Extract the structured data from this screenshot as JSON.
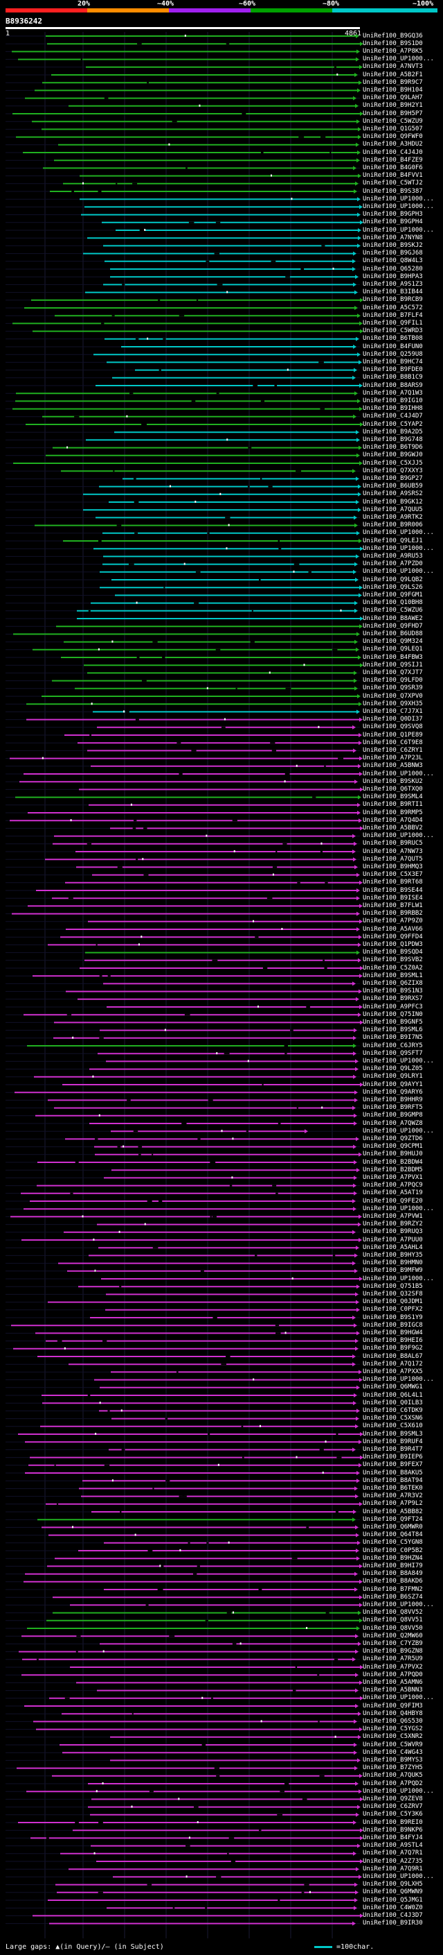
{
  "legend": {
    "ticks": [
      "20%",
      "~40%",
      "~60%",
      "~80%",
      "~100%"
    ],
    "colors": [
      "#ff2020",
      "#ff8c00",
      "#a020f0",
      "#00a000",
      "#00c8c8"
    ]
  },
  "query": {
    "id": "B8936242",
    "start": "1",
    "end": "4861"
  },
  "colors": {
    "cyan": "#00c8c8",
    "green": "#20b020",
    "magenta": "#d030d0",
    "gap": "#000"
  },
  "hits": [
    {
      "label": "UniRef100_B9GQ36",
      "c": "g"
    },
    {
      "label": "UniRef100_B9S1D0",
      "c": "g"
    },
    {
      "label": "UniRef100_A7P8K5",
      "c": "g"
    },
    {
      "label": "UniRef100_UP1000...",
      "c": "g"
    },
    {
      "label": "UniRef100_A7NVT3",
      "c": "g"
    },
    {
      "label": "UniRef100_A5B2F1",
      "c": "g"
    },
    {
      "label": "UniRef100_B9R9C7",
      "c": "g"
    },
    {
      "label": "UniRef100_B9H104",
      "c": "g"
    },
    {
      "label": "UniRef100_Q9LAH7",
      "c": "g"
    },
    {
      "label": "UniRef100_B9H2Y1",
      "c": "g"
    },
    {
      "label": "UniRef100_B9H5P7",
      "c": "g"
    },
    {
      "label": "UniRef100_C5WZU9",
      "c": "g"
    },
    {
      "label": "UniRef100_Q1G507",
      "c": "g"
    },
    {
      "label": "UniRef100_Q9FWF0",
      "c": "g"
    },
    {
      "label": "UniRef100_A3HDU2",
      "c": "g"
    },
    {
      "label": "UniRef100_C4J4J0",
      "c": "g"
    },
    {
      "label": "UniRef100_B4FZE9",
      "c": "g"
    },
    {
      "label": "UniRef100_B4G0F6",
      "c": "g"
    },
    {
      "label": "UniRef100_B4FVV1",
      "c": "g"
    },
    {
      "label": "UniRef100_C5WTJ2",
      "c": "g"
    },
    {
      "label": "UniRef100_B9S387",
      "c": "g"
    },
    {
      "label": "UniRef100_UP1000...",
      "c": "c"
    },
    {
      "label": "UniRef100_UP1000...",
      "c": "c"
    },
    {
      "label": "UniRef100_B9GPH3",
      "c": "c"
    },
    {
      "label": "UniRef100_B9GPH4",
      "c": "c"
    },
    {
      "label": "UniRef100_UP1000...",
      "c": "c"
    },
    {
      "label": "UniRef100_A7NYN8",
      "c": "c"
    },
    {
      "label": "UniRef100_B9SKJ2",
      "c": "c"
    },
    {
      "label": "UniRef100_B9GJ68",
      "c": "c"
    },
    {
      "label": "UniRef100_Q8W4L3",
      "c": "c"
    },
    {
      "label": "UniRef100_Q65280",
      "c": "c"
    },
    {
      "label": "UniRef100_B9HPA3",
      "c": "c"
    },
    {
      "label": "UniRef100_A9S1Z3",
      "c": "c"
    },
    {
      "label": "UniRef100_B3IB44",
      "c": "c"
    },
    {
      "label": "UniRef100_B9RCB9",
      "c": "g"
    },
    {
      "label": "UniRef100_A5C572",
      "c": "g"
    },
    {
      "label": "UniRef100_B7FLF4",
      "c": "g"
    },
    {
      "label": "UniRef100_Q9FIL1",
      "c": "g"
    },
    {
      "label": "UniRef100_C5WRD3",
      "c": "g"
    },
    {
      "label": "UniRef100_B6TB08",
      "c": "c"
    },
    {
      "label": "UniRef100_B4FUN0",
      "c": "c"
    },
    {
      "label": "UniRef100_Q259U8",
      "c": "c"
    },
    {
      "label": "UniRef100_B9HC74",
      "c": "c"
    },
    {
      "label": "UniRef100_B9FDE0",
      "c": "c"
    },
    {
      "label": "UniRef100_B8B1C9",
      "c": "c"
    },
    {
      "label": "UniRef100_B8ARS9",
      "c": "c"
    },
    {
      "label": "UniRef100_A7Q1W3",
      "c": "g"
    },
    {
      "label": "UniRef100_B9IG10",
      "c": "g"
    },
    {
      "label": "UniRef100_B9IHH8",
      "c": "g"
    },
    {
      "label": "UniRef100_C4J4D7",
      "c": "g"
    },
    {
      "label": "UniRef100_C5YAP2",
      "c": "g"
    },
    {
      "label": "UniRef100_B9A2D5",
      "c": "c"
    },
    {
      "label": "UniRef100_B9G748",
      "c": "c"
    },
    {
      "label": "UniRef100_B6T9D6",
      "c": "g"
    },
    {
      "label": "UniRef100_B9GWJ0",
      "c": "g"
    },
    {
      "label": "UniRef100_C5XJJ5",
      "c": "g"
    },
    {
      "label": "UniRef100_Q7XXY3",
      "c": "g"
    },
    {
      "label": "UniRef100_B9GP27",
      "c": "c"
    },
    {
      "label": "UniRef100_B6UB59",
      "c": "c"
    },
    {
      "label": "UniRef100_A9SRS2",
      "c": "c"
    },
    {
      "label": "UniRef100_B9GK12",
      "c": "c"
    },
    {
      "label": "UniRef100_A7QUU5",
      "c": "c"
    },
    {
      "label": "UniRef100_A9RTK2",
      "c": "c"
    },
    {
      "label": "UniRef100_B9R006",
      "c": "g"
    },
    {
      "label": "UniRef100_UP1000...",
      "c": "c"
    },
    {
      "label": "UniRef100_Q9LEJ1",
      "c": "g"
    },
    {
      "label": "UniRef100_UP1000...",
      "c": "c"
    },
    {
      "label": "UniRef100_A9RU53",
      "c": "c"
    },
    {
      "label": "UniRef100_A7PZD0",
      "c": "c"
    },
    {
      "label": "UniRef100_UP1000...",
      "c": "c"
    },
    {
      "label": "UniRef100_Q9LQB2",
      "c": "c"
    },
    {
      "label": "UniRef100_Q9LS26",
      "c": "c"
    },
    {
      "label": "UniRef100_Q9FGM1",
      "c": "c"
    },
    {
      "label": "UniRef100_Q10BH8",
      "c": "c"
    },
    {
      "label": "UniRef100_C5WZU6",
      "c": "c"
    },
    {
      "label": "UniRef100_B8AWE2",
      "c": "c"
    },
    {
      "label": "UniRef100_Q9FHD7",
      "c": "g"
    },
    {
      "label": "UniRef100_B6UD88",
      "c": "g"
    },
    {
      "label": "UniRef100_Q9M324",
      "c": "g"
    },
    {
      "label": "UniRef100_Q9LEQ1",
      "c": "g"
    },
    {
      "label": "UniRef100_B4FBW3",
      "c": "g"
    },
    {
      "label": "UniRef100_Q9SIJ1",
      "c": "g"
    },
    {
      "label": "UniRef100_Q7XJT7",
      "c": "g"
    },
    {
      "label": "UniRef100_Q9LFD0",
      "c": "g"
    },
    {
      "label": "UniRef100_Q9SR39",
      "c": "g"
    },
    {
      "label": "UniRef100_Q7XPV0",
      "c": "g"
    },
    {
      "label": "UniRef100_Q9XH35",
      "c": "g"
    },
    {
      "label": "UniRef100_C7J7X1",
      "c": "c"
    },
    {
      "label": "UniRef100_Q0DI37",
      "c": "m"
    },
    {
      "label": "UniRef100_Q9SVQ8",
      "c": "m"
    },
    {
      "label": "UniRef100_Q1PE89",
      "c": "m"
    },
    {
      "label": "UniRef100_C6T9E8",
      "c": "m"
    },
    {
      "label": "UniRef100_C6ZRY1",
      "c": "m"
    },
    {
      "label": "UniRef100_A7P23L",
      "c": "m"
    },
    {
      "label": "UniRef100_A5BNW3",
      "c": "m"
    },
    {
      "label": "UniRef100_UP1000...",
      "c": "m"
    },
    {
      "label": "UniRef100_B9SKU2",
      "c": "m"
    },
    {
      "label": "UniRef100_Q6TXQ0",
      "c": "m"
    },
    {
      "label": "UniRef100_B9SML4",
      "c": "g"
    },
    {
      "label": "UniRef100_B9RTI1",
      "c": "m"
    },
    {
      "label": "UniRef100_B9RMP5",
      "c": "m"
    },
    {
      "label": "UniRef100_A7Q4D4",
      "c": "m"
    },
    {
      "label": "UniRef100_A5BBV2",
      "c": "m"
    },
    {
      "label": "UniRef100_UP1000...",
      "c": "m"
    },
    {
      "label": "UniRef100_B9RUC5",
      "c": "m"
    },
    {
      "label": "UniRef100_A7NW73",
      "c": "m"
    },
    {
      "label": "UniRef100_A7QUT5",
      "c": "m"
    },
    {
      "label": "UniRef100_B9HMQ3",
      "c": "m"
    },
    {
      "label": "UniRef100_C5X3E7",
      "c": "m"
    },
    {
      "label": "UniRef100_B9RT68",
      "c": "m"
    },
    {
      "label": "UniRef100_B9SE44",
      "c": "m"
    },
    {
      "label": "UniRef100_B9ISE4",
      "c": "m"
    },
    {
      "label": "UniRef100_B7FLW1",
      "c": "m"
    },
    {
      "label": "UniRef100_B9RBB2",
      "c": "m"
    },
    {
      "label": "UniRef100_A7P9Z0",
      "c": "m"
    },
    {
      "label": "UniRef100_A5AV66",
      "c": "m"
    },
    {
      "label": "UniRef100_Q9FFD4",
      "c": "m"
    },
    {
      "label": "UniRef100_Q1PDW3",
      "c": "m"
    },
    {
      "label": "UniRef100_B9SQD4",
      "c": "g"
    },
    {
      "label": "UniRef100_B9SVB2",
      "c": "m"
    },
    {
      "label": "UniRef100_C5Z0A2",
      "c": "m"
    },
    {
      "label": "UniRef100_B9SML1",
      "c": "m"
    },
    {
      "label": "UniRef100_Q6ZIX8",
      "c": "m"
    },
    {
      "label": "UniRef100_B9S1N3",
      "c": "m"
    },
    {
      "label": "UniRef100_B9RXS7",
      "c": "m"
    },
    {
      "label": "UniRef100_A9PFC3",
      "c": "m"
    },
    {
      "label": "UniRef100_Q75IN0",
      "c": "m"
    },
    {
      "label": "UniRef100_B9GNF5",
      "c": "m"
    },
    {
      "label": "UniRef100_B9SML6",
      "c": "m"
    },
    {
      "label": "UniRef100_B9I7N5",
      "c": "m"
    },
    {
      "label": "UniRef100_C6JRY5",
      "c": "g"
    },
    {
      "label": "UniRef100_Q9SFT7",
      "c": "m"
    },
    {
      "label": "UniRef100_UP1000...",
      "c": "m"
    },
    {
      "label": "UniRef100_Q9LZ05",
      "c": "m"
    },
    {
      "label": "UniRef100_Q9LRY1",
      "c": "m"
    },
    {
      "label": "UniRef100_Q9AYY1",
      "c": "m"
    },
    {
      "label": "UniRef100_Q9ARY6",
      "c": "m"
    },
    {
      "label": "UniRef100_B9HHR9",
      "c": "m"
    },
    {
      "label": "UniRef100_B9RFT5",
      "c": "m"
    },
    {
      "label": "UniRef100_B9GMP8",
      "c": "m"
    },
    {
      "label": "UniRef100_A7QWZ8",
      "c": "m"
    },
    {
      "label": "UniRef100_UP1000...",
      "c": "m"
    },
    {
      "label": "UniRef100_Q9ZTD6",
      "c": "m"
    },
    {
      "label": "UniRef100_Q9CPM1",
      "c": "m"
    },
    {
      "label": "UniRef100_B9HUJ0",
      "c": "m"
    },
    {
      "label": "UniRef100_B2BDW4",
      "c": "m"
    },
    {
      "label": "UniRef100_B2BDM5",
      "c": "m"
    },
    {
      "label": "UniRef100_A7PVX1",
      "c": "m"
    },
    {
      "label": "UniRef100_A7PQC9",
      "c": "m"
    },
    {
      "label": "UniRef100_A5AT19",
      "c": "m"
    },
    {
      "label": "UniRef100_Q9FE20",
      "c": "m"
    },
    {
      "label": "UniRef100_UP1000...",
      "c": "m"
    },
    {
      "label": "UniRef100_A7PVW1",
      "c": "m"
    },
    {
      "label": "UniRef100_B9RZY2",
      "c": "m"
    },
    {
      "label": "UniRef100_B9RUQ3",
      "c": "m"
    },
    {
      "label": "UniRef100_A7PUU0",
      "c": "m"
    },
    {
      "label": "UniRef100_A5AHL4",
      "c": "m"
    },
    {
      "label": "UniRef100_B9HY35",
      "c": "m"
    },
    {
      "label": "UniRef100_B9HMN0",
      "c": "m"
    },
    {
      "label": "UniRef100_B9MFW9",
      "c": "m"
    },
    {
      "label": "UniRef100_UP1000...",
      "c": "m"
    },
    {
      "label": "UniRef100_Q751B5",
      "c": "m"
    },
    {
      "label": "UniRef100_Q32SF8",
      "c": "m"
    },
    {
      "label": "UniRef100_Q0JDM1",
      "c": "m"
    },
    {
      "label": "UniRef100_C0PFX2",
      "c": "m"
    },
    {
      "label": "UniRef100_B9S1Y9",
      "c": "m"
    },
    {
      "label": "UniRef100_B9IGC8",
      "c": "m"
    },
    {
      "label": "UniRef100_B9HGW4",
      "c": "m"
    },
    {
      "label": "UniRef100_B9HEI6",
      "c": "m"
    },
    {
      "label": "UniRef100_B9F9G2",
      "c": "m"
    },
    {
      "label": "UniRef100_B8AL67",
      "c": "m"
    },
    {
      "label": "UniRef100_A7Q172",
      "c": "m"
    },
    {
      "label": "UniRef100_A7PXX5",
      "c": "m"
    },
    {
      "label": "UniRef100_UP1000...",
      "c": "m"
    },
    {
      "label": "UniRef100_Q6MWG1",
      "c": "m"
    },
    {
      "label": "UniRef100_Q6L4L1",
      "c": "m"
    },
    {
      "label": "UniRef100_Q0ILB3",
      "c": "m"
    },
    {
      "label": "UniRef100_C6TDK9",
      "c": "m"
    },
    {
      "label": "UniRef100_C5XSN6",
      "c": "m"
    },
    {
      "label": "UniRef100_C5X610",
      "c": "m"
    },
    {
      "label": "UniRef100_B9SML3",
      "c": "m"
    },
    {
      "label": "UniRef100_B9RUF4",
      "c": "m"
    },
    {
      "label": "UniRef100_B9R4T7",
      "c": "m"
    },
    {
      "label": "UniRef100_B9IEP6",
      "c": "m"
    },
    {
      "label": "UniRef100_B9FEX7",
      "c": "m"
    },
    {
      "label": "UniRef100_B8AKU5",
      "c": "m"
    },
    {
      "label": "UniRef100_B8AT94",
      "c": "m"
    },
    {
      "label": "UniRef100_B6TEK0",
      "c": "m"
    },
    {
      "label": "UniRef100_A7R3V2",
      "c": "m"
    },
    {
      "label": "UniRef100_A7P9L2",
      "c": "m"
    },
    {
      "label": "UniRef100_A5BB82",
      "c": "m"
    },
    {
      "label": "UniRef100_Q9FT24",
      "c": "g"
    },
    {
      "label": "UniRef100_Q6MWR0",
      "c": "m"
    },
    {
      "label": "UniRef100_Q64T84",
      "c": "m"
    },
    {
      "label": "UniRef100_C5YGN8",
      "c": "m"
    },
    {
      "label": "UniRef100_C0P5B2",
      "c": "m"
    },
    {
      "label": "UniRef100_B9HZN4",
      "c": "m"
    },
    {
      "label": "UniRef100_B9HI79",
      "c": "m"
    },
    {
      "label": "UniRef100_B8A849",
      "c": "m"
    },
    {
      "label": "UniRef100_B8AKD6",
      "c": "m"
    },
    {
      "label": "UniRef100_B7FMN2",
      "c": "m"
    },
    {
      "label": "UniRef100_B6SZ74",
      "c": "m"
    },
    {
      "label": "UniRef100_UP1000...",
      "c": "m"
    },
    {
      "label": "UniRef100_Q8VV52",
      "c": "g"
    },
    {
      "label": "UniRef100_Q8VV51",
      "c": "g"
    },
    {
      "label": "UniRef100_Q8VV50",
      "c": "g"
    },
    {
      "label": "UniRef100_Q2MW60",
      "c": "m"
    },
    {
      "label": "UniRef100_C7YZB9",
      "c": "m"
    },
    {
      "label": "UniRef100_B9GZN8",
      "c": "m"
    },
    {
      "label": "UniRef100_A7R5U9",
      "c": "m"
    },
    {
      "label": "UniRef100_A7PVX2",
      "c": "m"
    },
    {
      "label": "UniRef100_A7PQD0",
      "c": "m"
    },
    {
      "label": "UniRef100_A5AMN6",
      "c": "m"
    },
    {
      "label": "UniRef100_A5BNN3",
      "c": "m"
    },
    {
      "label": "UniRef100_UP1000...",
      "c": "m"
    },
    {
      "label": "UniRef100_Q9FIM3",
      "c": "m"
    },
    {
      "label": "UniRef100_Q4HBY8",
      "c": "m"
    },
    {
      "label": "UniRef100_Q6S530",
      "c": "m"
    },
    {
      "label": "UniRef100_C5YGS2",
      "c": "m"
    },
    {
      "label": "UniRef100_C5XNR2",
      "c": "m"
    },
    {
      "label": "UniRef100_C5WVR9",
      "c": "m"
    },
    {
      "label": "UniRef100_C4WG43",
      "c": "m"
    },
    {
      "label": "UniRef100_B9MYS3",
      "c": "m"
    },
    {
      "label": "UniRef100_B7ZYH5",
      "c": "m"
    },
    {
      "label": "UniRef100_A7QUK5",
      "c": "m"
    },
    {
      "label": "UniRef100_A7PQD2",
      "c": "m"
    },
    {
      "label": "UniRef100_UP1000...",
      "c": "m"
    },
    {
      "label": "UniRef100_Q9ZEV8",
      "c": "m"
    },
    {
      "label": "UniRef100_C6ZRV7",
      "c": "m"
    },
    {
      "label": "UniRef100_C5Y3K6",
      "c": "m"
    },
    {
      "label": "UniRef100_B9REI0",
      "c": "m"
    },
    {
      "label": "UniRef100_B9NKP6",
      "c": "m"
    },
    {
      "label": "UniRef100_B4FYJ4",
      "c": "m"
    },
    {
      "label": "UniRef100_A9STL4",
      "c": "m"
    },
    {
      "label": "UniRef100_A7Q7R1",
      "c": "m"
    },
    {
      "label": "UniRef100_A2Z735",
      "c": "m"
    },
    {
      "label": "UniRef100_A7Q9R1",
      "c": "m"
    },
    {
      "label": "UniRef100_UP1000...",
      "c": "m"
    },
    {
      "label": "UniRef100_Q9LXH5",
      "c": "m"
    },
    {
      "label": "UniRef100_Q6MWN9",
      "c": "m"
    },
    {
      "label": "UniRef100_Q5JMG1",
      "c": "m"
    },
    {
      "label": "UniRef100_C4W0Z0",
      "c": "m"
    },
    {
      "label": "UniRef100_C4J3D7",
      "c": "m"
    },
    {
      "label": "UniRef100_B9IR30",
      "c": "m"
    }
  ],
  "footer": {
    "left": "Large gaps: ▲(in Query)/— (in Subject)",
    "right": "=100char."
  }
}
